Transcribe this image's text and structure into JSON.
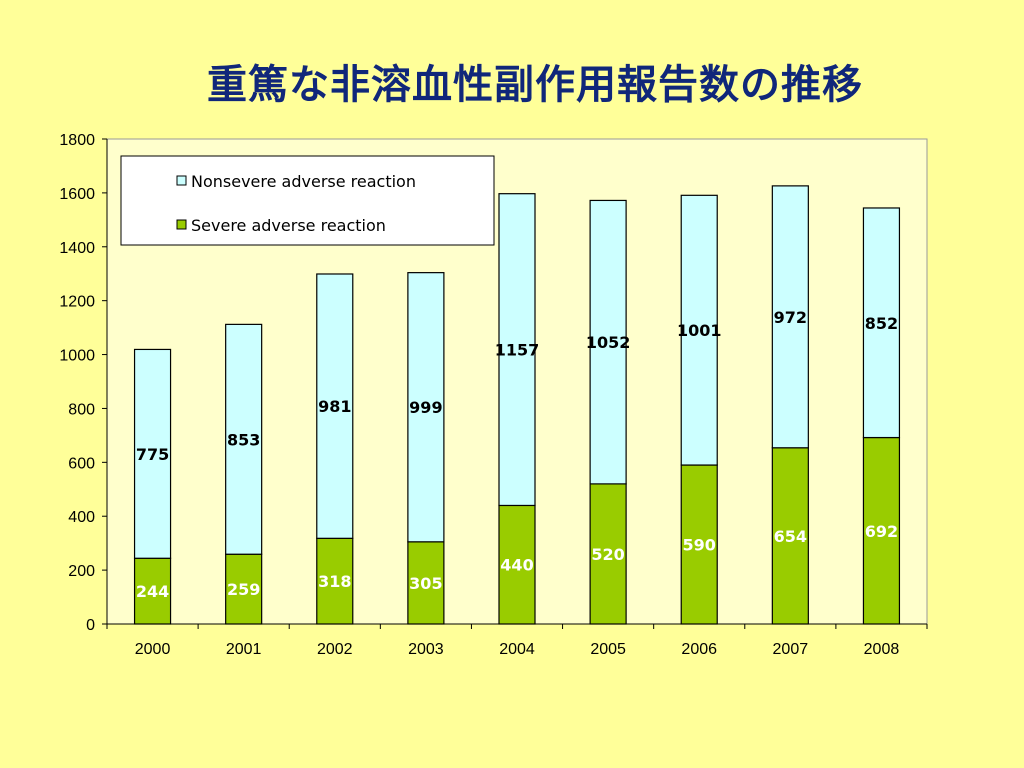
{
  "slide": {
    "title": "重篤な非溶血性副作用報告数の推移"
  },
  "colors": {
    "background": "#ffff99",
    "title": "#10277a",
    "nonsevere": "#ccffff",
    "severe": "#99cc00",
    "plot_area": "#ffffcc"
  },
  "chart_data": {
    "type": "bar",
    "stacked": true,
    "categories": [
      "2000",
      "2001",
      "2002",
      "2003",
      "2004",
      "2005",
      "2006",
      "2007",
      "2008"
    ],
    "series": [
      {
        "name": "Severe adverse reaction",
        "values": [
          244,
          259,
          318,
          305,
          440,
          520,
          590,
          654,
          692
        ],
        "color": "#99cc00",
        "label_color": "#ffffff"
      },
      {
        "name": "Nonsevere adverse reaction",
        "values": [
          775,
          853,
          981,
          999,
          1157,
          1052,
          1001,
          972,
          852
        ],
        "color": "#ccffff",
        "label_color": "#000000"
      }
    ],
    "ylim": [
      0,
      1800
    ],
    "yticks": [
      0,
      200,
      400,
      600,
      800,
      1000,
      1200,
      1400,
      1600,
      1800
    ],
    "legend": {
      "position": "top-left",
      "entries": [
        "Nonsevere adverse reaction",
        "Severe adverse reaction"
      ]
    },
    "grid": false
  }
}
